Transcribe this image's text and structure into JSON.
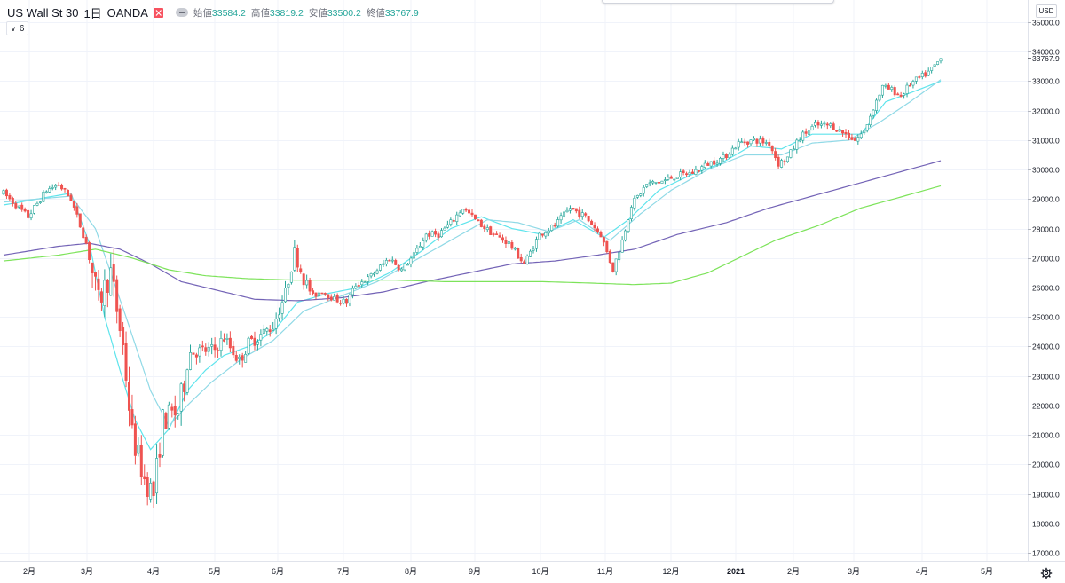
{
  "legend": {
    "symbol": "US Wall St 30",
    "interval": "1日",
    "broker": "OANDA",
    "open_label": "始値",
    "open": "33584.2",
    "high_label": "高値",
    "high": "33819.2",
    "low_label": "安値",
    "low": "33500.2",
    "close_label": "終値",
    "close": "33767.9"
  },
  "indicator_toggle": {
    "label": "6"
  },
  "currency": "USD",
  "colors": {
    "up": "#26a69a",
    "down": "#ef5350",
    "ma_fast": "#5ee4ec",
    "ma_mid": "#8fd9e6",
    "ma_purple": "#7363b6",
    "ma_green": "#7de35a",
    "price_tag": "#26a69a"
  },
  "chart_data": {
    "type": "candlestick",
    "y_ticks": [
      17000,
      18000,
      19000,
      20000,
      21000,
      22000,
      23000,
      24000,
      25000,
      26000,
      27000,
      28000,
      29000,
      30000,
      31000,
      32000,
      33000,
      34000,
      35000
    ],
    "y_tick_labels": [
      "17000.0",
      "18000.0",
      "19000.0",
      "20000.0",
      "21000.0",
      "22000.0",
      "23000.0",
      "24000.0",
      "25000.0",
      "26000.0",
      "27000.0",
      "28000.0",
      "29000.0",
      "30000.0",
      "31000.0",
      "32000.0",
      "33000.0",
      "34000.0",
      "35000.0"
    ],
    "ylim": [
      16800,
      35500
    ],
    "x_months": [
      "2月",
      "3月",
      "4月",
      "5月",
      "6月",
      "7月",
      "8月",
      "9月",
      "10月",
      "11月",
      "12月",
      "2021",
      "2月",
      "3月",
      "4月",
      "5月"
    ],
    "current_price_label": "33767.9",
    "price_keypoints": [
      [
        0,
        29200
      ],
      [
        8,
        28400
      ],
      [
        14,
        29300
      ],
      [
        18,
        29500
      ],
      [
        22,
        29000
      ],
      [
        27,
        27500
      ],
      [
        31,
        25500
      ],
      [
        35,
        26500
      ],
      [
        39,
        24000
      ],
      [
        42,
        21000
      ],
      [
        46,
        19500
      ],
      [
        49,
        19000
      ],
      [
        52,
        21500
      ],
      [
        57,
        21800
      ],
      [
        61,
        23800
      ],
      [
        69,
        23900
      ],
      [
        72,
        24300
      ],
      [
        77,
        23500
      ],
      [
        80,
        24100
      ],
      [
        84,
        24400
      ],
      [
        88,
        24700
      ],
      [
        92,
        25800
      ],
      [
        95,
        27200
      ],
      [
        98,
        26300
      ],
      [
        101,
        25700
      ],
      [
        104,
        25900
      ],
      [
        108,
        25600
      ],
      [
        112,
        25500
      ],
      [
        115,
        26100
      ],
      [
        119,
        26300
      ],
      [
        122,
        26600
      ],
      [
        126,
        27000
      ],
      [
        130,
        26600
      ],
      [
        134,
        27100
      ],
      [
        138,
        27800
      ],
      [
        142,
        27800
      ],
      [
        146,
        28200
      ],
      [
        150,
        28700
      ],
      [
        155,
        28200
      ],
      [
        160,
        27800
      ],
      [
        165,
        27500
      ],
      [
        170,
        26800
      ],
      [
        175,
        27800
      ],
      [
        180,
        28100
      ],
      [
        185,
        28700
      ],
      [
        190,
        28400
      ],
      [
        195,
        27800
      ],
      [
        199,
        26600
      ],
      [
        202,
        27600
      ],
      [
        205,
        28800
      ],
      [
        210,
        29500
      ],
      [
        215,
        29600
      ],
      [
        220,
        29800
      ],
      [
        225,
        29900
      ],
      [
        230,
        30200
      ],
      [
        235,
        30400
      ],
      [
        240,
        30900
      ],
      [
        245,
        31000
      ],
      [
        250,
        30900
      ],
      [
        253,
        30200
      ],
      [
        256,
        30400
      ],
      [
        260,
        31100
      ],
      [
        265,
        31500
      ],
      [
        270,
        31500
      ],
      [
        275,
        31200
      ],
      [
        278,
        31000
      ],
      [
        281,
        31300
      ],
      [
        284,
        32100
      ],
      [
        287,
        32800
      ],
      [
        290,
        32700
      ],
      [
        293,
        32500
      ],
      [
        296,
        32900
      ],
      [
        299,
        33100
      ],
      [
        302,
        33300
      ],
      [
        306,
        33750
      ]
    ],
    "moving_averages": [
      {
        "color_key": "ma_fast",
        "keypoints": [
          [
            0,
            28800
          ],
          [
            22,
            29200
          ],
          [
            28,
            27500
          ],
          [
            33,
            25000
          ],
          [
            38,
            23200
          ],
          [
            43,
            21500
          ],
          [
            48,
            20500
          ],
          [
            54,
            21200
          ],
          [
            60,
            22500
          ],
          [
            66,
            23200
          ],
          [
            72,
            23700
          ],
          [
            80,
            24000
          ],
          [
            88,
            24500
          ],
          [
            96,
            25500
          ],
          [
            106,
            25800
          ],
          [
            116,
            26000
          ],
          [
            126,
            26500
          ],
          [
            136,
            27200
          ],
          [
            146,
            28000
          ],
          [
            156,
            28400
          ],
          [
            166,
            28000
          ],
          [
            176,
            27800
          ],
          [
            186,
            28300
          ],
          [
            196,
            27700
          ],
          [
            204,
            28300
          ],
          [
            214,
            29300
          ],
          [
            224,
            29800
          ],
          [
            234,
            30200
          ],
          [
            244,
            30800
          ],
          [
            254,
            30700
          ],
          [
            264,
            31200
          ],
          [
            274,
            31200
          ],
          [
            280,
            31200
          ],
          [
            288,
            32300
          ],
          [
            296,
            32600
          ],
          [
            306,
            33000
          ]
        ]
      },
      {
        "color_key": "ma_mid",
        "keypoints": [
          [
            0,
            28900
          ],
          [
            22,
            29100
          ],
          [
            30,
            28000
          ],
          [
            40,
            25000
          ],
          [
            48,
            22500
          ],
          [
            54,
            21300
          ],
          [
            60,
            22000
          ],
          [
            68,
            22800
          ],
          [
            78,
            23600
          ],
          [
            88,
            24200
          ],
          [
            98,
            25200
          ],
          [
            110,
            25700
          ],
          [
            122,
            26200
          ],
          [
            134,
            26900
          ],
          [
            146,
            27600
          ],
          [
            158,
            28300
          ],
          [
            168,
            28200
          ],
          [
            178,
            27900
          ],
          [
            188,
            28300
          ],
          [
            198,
            27600
          ],
          [
            208,
            28500
          ],
          [
            218,
            29300
          ],
          [
            230,
            30000
          ],
          [
            242,
            30500
          ],
          [
            254,
            30500
          ],
          [
            264,
            30900
          ],
          [
            276,
            31000
          ],
          [
            286,
            31600
          ],
          [
            296,
            32300
          ],
          [
            306,
            33050
          ]
        ]
      },
      {
        "color_key": "ma_purple",
        "keypoints": [
          [
            0,
            27100
          ],
          [
            18,
            27400
          ],
          [
            28,
            27500
          ],
          [
            38,
            27300
          ],
          [
            48,
            26800
          ],
          [
            58,
            26200
          ],
          [
            70,
            25900
          ],
          [
            82,
            25600
          ],
          [
            96,
            25550
          ],
          [
            110,
            25650
          ],
          [
            124,
            25850
          ],
          [
            138,
            26200
          ],
          [
            152,
            26500
          ],
          [
            166,
            26800
          ],
          [
            180,
            26900
          ],
          [
            194,
            27100
          ],
          [
            206,
            27300
          ],
          [
            220,
            27800
          ],
          [
            236,
            28200
          ],
          [
            250,
            28700
          ],
          [
            264,
            29100
          ],
          [
            278,
            29500
          ],
          [
            292,
            29900
          ],
          [
            306,
            30300
          ]
        ]
      },
      {
        "color_key": "ma_green",
        "keypoints": [
          [
            0,
            26900
          ],
          [
            18,
            27100
          ],
          [
            30,
            27300
          ],
          [
            42,
            27000
          ],
          [
            54,
            26600
          ],
          [
            66,
            26400
          ],
          [
            80,
            26300
          ],
          [
            96,
            26250
          ],
          [
            112,
            26250
          ],
          [
            128,
            26250
          ],
          [
            144,
            26200
          ],
          [
            160,
            26200
          ],
          [
            176,
            26200
          ],
          [
            192,
            26150
          ],
          [
            206,
            26100
          ],
          [
            218,
            26150
          ],
          [
            230,
            26500
          ],
          [
            240,
            27000
          ],
          [
            252,
            27600
          ],
          [
            266,
            28100
          ],
          [
            280,
            28700
          ],
          [
            294,
            29100
          ],
          [
            306,
            29450
          ]
        ]
      }
    ]
  }
}
